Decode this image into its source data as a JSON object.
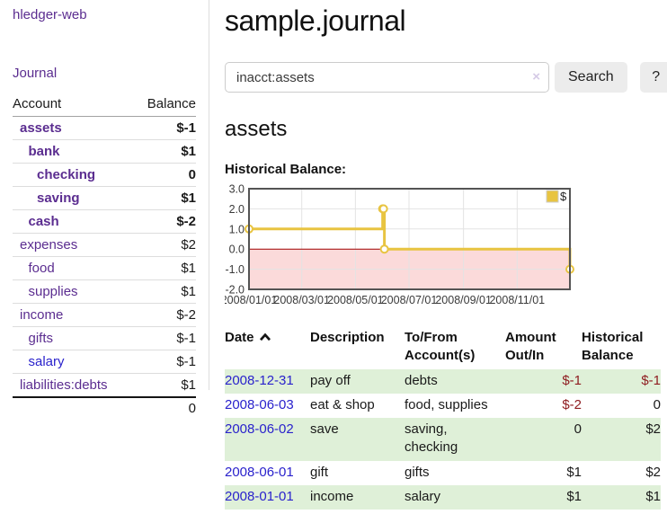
{
  "app": {
    "brand": "hledger-web",
    "nav_journal": "Journal"
  },
  "sidebar": {
    "table": {
      "account_header": "Account",
      "balance_header": "Balance",
      "total": "0"
    },
    "accounts": [
      {
        "name": "assets",
        "depth": 1,
        "bold": true,
        "balance": "$-1",
        "neg": "strong",
        "link": "visited"
      },
      {
        "name": "bank",
        "depth": 2,
        "bold": true,
        "balance": "$1",
        "neg": "none",
        "link": "visited"
      },
      {
        "name": "checking",
        "depth": 3,
        "bold": true,
        "balance": "0",
        "neg": "none",
        "link": "visited"
      },
      {
        "name": "saving",
        "depth": 3,
        "bold": true,
        "balance": "$1",
        "neg": "none",
        "link": "visited"
      },
      {
        "name": "cash",
        "depth": 2,
        "bold": true,
        "balance": "$-2",
        "neg": "strong",
        "link": "visited"
      },
      {
        "name": "expenses",
        "depth": 1,
        "bold": false,
        "balance": "$2",
        "neg": "none",
        "link": "visited"
      },
      {
        "name": "food",
        "depth": 2,
        "bold": false,
        "balance": "$1",
        "neg": "none",
        "link": "visited"
      },
      {
        "name": "supplies",
        "depth": 2,
        "bold": false,
        "balance": "$1",
        "neg": "none",
        "link": "visited"
      },
      {
        "name": "income",
        "depth": 1,
        "bold": false,
        "balance": "$-2",
        "neg": "soft",
        "link": "visited"
      },
      {
        "name": "gifts",
        "depth": 2,
        "bold": false,
        "balance": "$-1",
        "neg": "soft",
        "link": "visited"
      },
      {
        "name": "salary",
        "depth": 2,
        "bold": false,
        "balance": "$-1",
        "neg": "soft",
        "link": "unvisited"
      },
      {
        "name": "liabilities:debts",
        "depth": 1,
        "bold": false,
        "balance": "$1",
        "neg": "none",
        "link": "visited"
      }
    ]
  },
  "header": {
    "title": "sample.journal"
  },
  "search": {
    "value": "inacct:assets",
    "clear_icon": "×",
    "search_label": "Search",
    "help_label": "?"
  },
  "account_page": {
    "heading": "assets",
    "chart_label": "Historical Balance:"
  },
  "chart_data": {
    "type": "line",
    "step": true,
    "title": "Historical Balance:",
    "series": [
      {
        "name": "$",
        "color": "#e8c441",
        "points": [
          {
            "date": "2008-01-01",
            "value": 1
          },
          {
            "date": "2008-06-01",
            "value": 2
          },
          {
            "date": "2008-06-02",
            "value": 2
          },
          {
            "date": "2008-06-03",
            "value": 0
          },
          {
            "date": "2008-12-31",
            "value": -1
          }
        ]
      }
    ],
    "xlim": [
      "2008-01-01",
      "2008-12-31"
    ],
    "ylim": [
      -2,
      3
    ],
    "y_ticks": [
      {
        "value": 3,
        "label": "3.0"
      },
      {
        "value": 2,
        "label": "2.0"
      },
      {
        "value": 1,
        "label": "1.0"
      },
      {
        "value": 0,
        "label": "0.0"
      },
      {
        "value": -1,
        "label": "-1.0"
      },
      {
        "value": -2,
        "label": "-2.0"
      }
    ],
    "x_ticks": [
      {
        "date": "2008-01-01",
        "label": "2008/01/01"
      },
      {
        "date": "2008-03-01",
        "label": "2008/03/01"
      },
      {
        "date": "2008-05-01",
        "label": "2008/05/01"
      },
      {
        "date": "2008-07-01",
        "label": "2008/07/01"
      },
      {
        "date": "2008-09-01",
        "label": "2008/09/01"
      },
      {
        "date": "2008-11-01",
        "label": "2008/11/01"
      }
    ],
    "legend": [
      {
        "label": "$",
        "color": "#e8c441"
      }
    ],
    "legend_position": "top-right",
    "grid": true,
    "grid_color": "#e3e3e3",
    "border_color": "#545454",
    "negative_fill": "#fbdada",
    "zero_line_color": "#a00000",
    "marker_fill": "#ffffff"
  },
  "register": {
    "headers": {
      "date": "Date",
      "description": "Description",
      "tofrom": "To/From Account(s)",
      "amount": "Amount Out/In",
      "balance": "Historical Balance"
    },
    "rows": [
      {
        "date": "2008-12-31",
        "description": "pay off",
        "tofrom": "debts",
        "amount": "$-1",
        "amount_neg": true,
        "balance": "$-1",
        "balance_neg": true
      },
      {
        "date": "2008-06-03",
        "description": "eat & shop",
        "tofrom": "food, supplies",
        "amount": "$-2",
        "amount_neg": true,
        "balance": "0",
        "balance_neg": false
      },
      {
        "date": "2008-06-02",
        "description": "save",
        "tofrom": "saving, checking",
        "amount": "0",
        "amount_neg": false,
        "balance": "$2",
        "balance_neg": false
      },
      {
        "date": "2008-06-01",
        "description": "gift",
        "tofrom": "gifts",
        "amount": "$1",
        "amount_neg": false,
        "balance": "$2",
        "balance_neg": false
      },
      {
        "date": "2008-01-01",
        "description": "income",
        "tofrom": "salary",
        "amount": "$1",
        "amount_neg": false,
        "balance": "$1",
        "balance_neg": false
      }
    ]
  }
}
